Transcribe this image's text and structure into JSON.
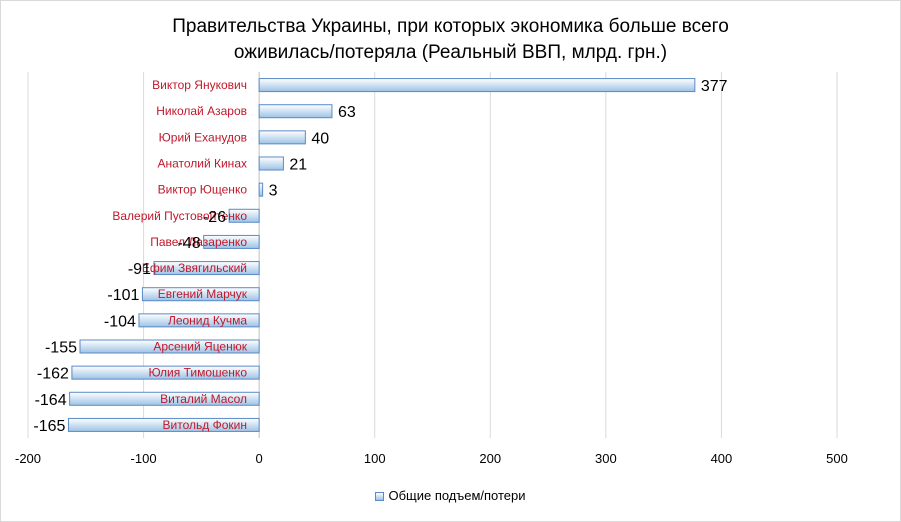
{
  "chart_data": {
    "type": "bar",
    "orientation": "horizontal",
    "title": "Правительства Украины, при которых экономика больше всего\nоживилась/потеряла (Реальный ВВП, млрд. грн.)",
    "categories": [
      "Виктор Янукович",
      "Николай Азаров",
      "Юрий Еханудов",
      "Анатолий Кинах",
      "Виктор Ющенко",
      "Валерий Пустовойтенко",
      "Павел Лазаренко",
      "Ефим Звягильский",
      "Евгений Марчук",
      "Леонид Кучма",
      "Арсений Яценюк",
      "Юлия Тимошенко",
      "Виталий Масол",
      "Витольд Фокин"
    ],
    "series": [
      {
        "name": "Общие подъем/потери",
        "values": [
          377,
          63,
          40,
          21,
          3,
          -26,
          -48,
          -91,
          -101,
          -104,
          -155,
          -162,
          -164,
          -165
        ],
        "labels": [
          "377",
          "63",
          "40",
          "21",
          "3",
          "-26",
          "-48",
          "-91",
          "-101",
          "-104",
          "-155",
          "-162",
          "-164",
          "-165"
        ]
      }
    ],
    "xlim": [
      -200,
      500
    ],
    "xticks": [
      -200,
      -100,
      0,
      100,
      200,
      300,
      400,
      500
    ],
    "xtick_labels": [
      "-200",
      "-100",
      "0",
      "100",
      "200",
      "300",
      "400",
      "500"
    ],
    "grid": true,
    "legend": "bottom",
    "colors": {
      "bar_fill_top": "#ffffff",
      "bar_fill_bottom": "#9dc3e6",
      "bar_stroke": "#5b8ac6",
      "category_label": "#c0182b",
      "grid": "#d9d9d9"
    }
  }
}
